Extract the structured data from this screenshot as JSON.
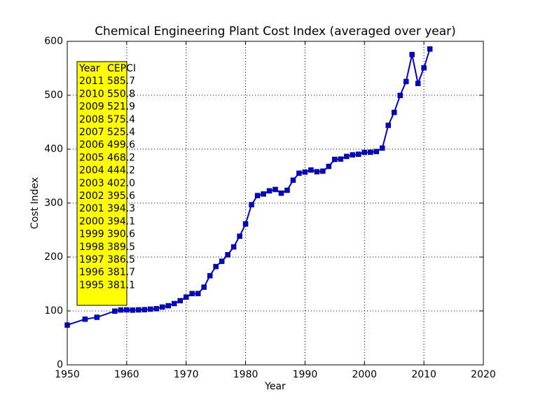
{
  "chart_data": {
    "type": "line",
    "title": "Chemical Engineering Plant Cost Index (averaged over year)",
    "xlabel": "Year",
    "ylabel": "Cost Index",
    "x": [
      1950,
      1953,
      1955,
      1958,
      1959,
      1960,
      1961,
      1962,
      1963,
      1964,
      1965,
      1966,
      1967,
      1968,
      1969,
      1970,
      1971,
      1972,
      1973,
      1974,
      1975,
      1976,
      1977,
      1978,
      1979,
      1980,
      1981,
      1982,
      1983,
      1984,
      1985,
      1986,
      1987,
      1988,
      1989,
      1990,
      1991,
      1992,
      1993,
      1994,
      1995,
      1996,
      1997,
      1998,
      1999,
      2000,
      2001,
      2002,
      2003,
      2004,
      2005,
      2006,
      2007,
      2008,
      2009,
      2010,
      2011
    ],
    "series": [
      {
        "name": "CEPCI",
        "color": "#0000cc",
        "values": [
          73.9,
          84.7,
          88.3,
          99.7,
          101.8,
          102.0,
          101.5,
          102.0,
          102.4,
          103.3,
          104.2,
          107.2,
          109.7,
          113.7,
          119.0,
          125.7,
          132.2,
          132.3,
          144.1,
          165.4,
          182.4,
          192.1,
          204.1,
          218.8,
          238.7,
          261.2,
          297.0,
          314.0,
          316.9,
          322.7,
          325.3,
          318.4,
          323.8,
          342.5,
          355.4,
          357.6,
          361.3,
          358.2,
          359.2,
          368.1,
          381.1,
          381.7,
          386.5,
          389.5,
          390.6,
          394.1,
          394.3,
          395.6,
          402.0,
          444.2,
          468.2,
          499.6,
          525.4,
          575.4,
          521.9,
          550.8,
          585.7
        ]
      }
    ],
    "xlim": [
      1950,
      2020
    ],
    "xticks": [
      1950,
      1960,
      1970,
      1980,
      1990,
      2000,
      2010,
      2020
    ],
    "ylim": [
      0,
      600
    ],
    "yticks": [
      0,
      100,
      200,
      300,
      400,
      500,
      600
    ],
    "grid": true,
    "table": {
      "header": [
        "Year",
        "CEPCI"
      ],
      "rows": [
        [
          "2011",
          "585.7"
        ],
        [
          "2010",
          "550.8"
        ],
        [
          "2009",
          "521.9"
        ],
        [
          "2008",
          "575.4"
        ],
        [
          "2007",
          "525.4"
        ],
        [
          "2006",
          "499.6"
        ],
        [
          "2005",
          "468.2"
        ],
        [
          "2004",
          "444.2"
        ],
        [
          "2003",
          "402.0"
        ],
        [
          "2002",
          "395.6"
        ],
        [
          "2001",
          "394.3"
        ],
        [
          "2000",
          "394.1"
        ],
        [
          "1999",
          "390.6"
        ],
        [
          "1998",
          "389.5"
        ],
        [
          "1997",
          "386.5"
        ],
        [
          "1996",
          "381.7"
        ],
        [
          "1995",
          "381.1"
        ]
      ],
      "color": "#ffff00"
    }
  }
}
